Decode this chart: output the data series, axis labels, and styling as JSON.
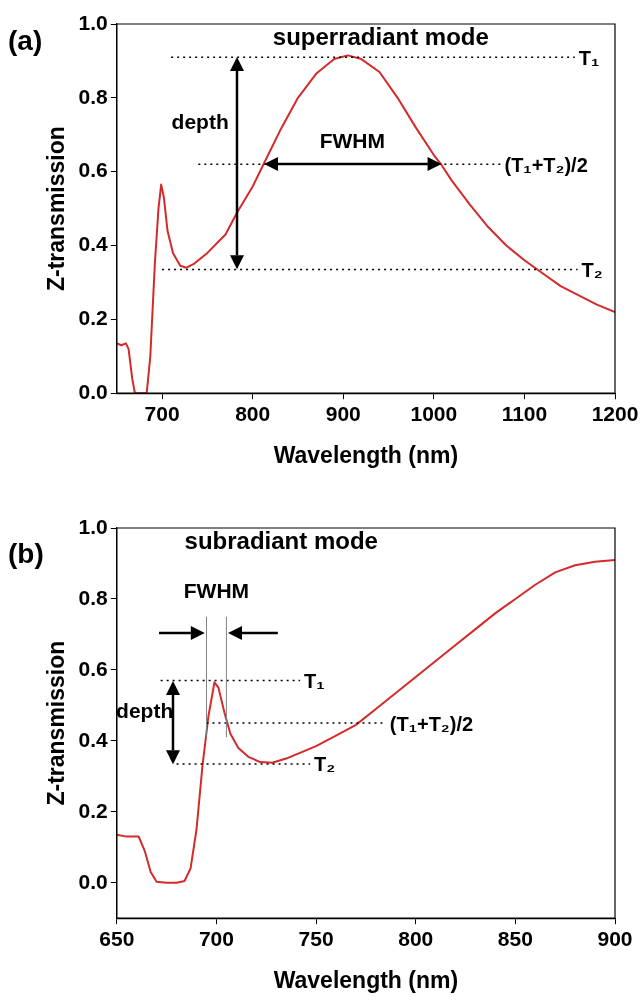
{
  "chart_data": [
    {
      "type": "line",
      "title": "superradiant mode",
      "xlabel": "Wavelength (nm)",
      "ylabel": "Z-transmission",
      "xlim": [
        650,
        1200
      ],
      "xticks": [
        700,
        800,
        900,
        1000,
        1100,
        1200
      ],
      "ylim": [
        0,
        1
      ],
      "yticks": [
        {
          "value": 0,
          "label": "0.0"
        },
        {
          "value": 0.2,
          "label": "0.2"
        },
        {
          "value": 0.4,
          "label": "0.4"
        },
        {
          "value": 0.6,
          "label": "0.6"
        },
        {
          "value": 0.8,
          "label": "0.8"
        },
        {
          "value": 1,
          "label": "1.0"
        }
      ],
      "grid": false,
      "legend": false,
      "marker": "none",
      "line_style": "solid",
      "ref_lines": [
        {
          "axis": "y",
          "value": 0.91,
          "label": "T₁",
          "color": "#000000",
          "line_style": "dotted"
        },
        {
          "axis": "y",
          "value": 0.62,
          "label": "(T₁+T₂)/2",
          "color": "#000000",
          "line_style": "dotted"
        },
        {
          "axis": "y",
          "value": 0.335,
          "label": "T₂",
          "color": "#000000",
          "line_style": "dotted"
        }
      ],
      "annotations": [
        "(a)",
        "depth",
        "FWHM"
      ],
      "series": [
        {
          "color": "#d42a2a",
          "x": [
            650,
            655,
            660,
            663,
            667,
            670,
            683,
            687,
            692,
            696,
            699,
            702,
            706,
            712,
            720,
            727,
            735,
            750,
            770,
            783,
            800,
            812,
            830,
            850,
            870,
            890,
            905,
            920,
            940,
            960,
            980,
            1000,
            1008,
            1020,
            1040,
            1060,
            1080,
            1100,
            1120,
            1140,
            1160,
            1180,
            1200
          ],
          "values": [
            0.135,
            0.13,
            0.135,
            0.12,
            0.04,
            0.0,
            0.0,
            0.1,
            0.35,
            0.5,
            0.565,
            0.53,
            0.44,
            0.38,
            0.345,
            0.34,
            0.35,
            0.38,
            0.43,
            0.49,
            0.56,
            0.62,
            0.71,
            0.8,
            0.865,
            0.905,
            0.915,
            0.905,
            0.87,
            0.8,
            0.72,
            0.645,
            0.62,
            0.575,
            0.51,
            0.45,
            0.4,
            0.36,
            0.325,
            0.29,
            0.265,
            0.24,
            0.22
          ]
        }
      ]
    },
    {
      "type": "line",
      "title": "subradiant mode",
      "xlabel": "Wavelength (nm)",
      "ylabel": "Z-transmission",
      "xlim": [
        650,
        900
      ],
      "xticks": [
        650,
        700,
        750,
        800,
        850,
        900
      ],
      "ylim": [
        -0.1,
        1
      ],
      "yticks": [
        {
          "value": 0,
          "label": "0.0"
        },
        {
          "value": 0.2,
          "label": "0.2"
        },
        {
          "value": 0.4,
          "label": "0.4"
        },
        {
          "value": 0.6,
          "label": "0.6"
        },
        {
          "value": 0.8,
          "label": "0.8"
        },
        {
          "value": 1,
          "label": "1.0"
        }
      ],
      "grid": false,
      "legend": false,
      "marker": "none",
      "line_style": "solid",
      "ref_lines": [
        {
          "axis": "y",
          "value": 0.57,
          "label": "T₁",
          "color": "#000000",
          "line_style": "dotted"
        },
        {
          "axis": "y",
          "value": 0.45,
          "label": "(T₁+T₂)/2",
          "color": "#000000",
          "line_style": "dotted"
        },
        {
          "axis": "y",
          "value": 0.335,
          "label": "T₂",
          "color": "#000000",
          "line_style": "dotted"
        },
        {
          "axis": "x",
          "value": 695,
          "color": "#808080",
          "line_style": "solid"
        },
        {
          "axis": "x",
          "value": 705,
          "color": "#808080",
          "line_style": "solid"
        }
      ],
      "annotations": [
        "(b)",
        "depth",
        "FWHM"
      ],
      "series": [
        {
          "color": "#d42a2a",
          "x": [
            650,
            655,
            658,
            661,
            664,
            667,
            670,
            675,
            680,
            684,
            687,
            690,
            693,
            696,
            699,
            701,
            704,
            707,
            711,
            716,
            722,
            728,
            735,
            750,
            760,
            770,
            780,
            790,
            800,
            810,
            820,
            830,
            840,
            850,
            860,
            870,
            880,
            890,
            900
          ],
          "values": [
            0.135,
            0.13,
            0.13,
            0.13,
            0.09,
            0.03,
            0.003,
            0.0,
            0.0,
            0.005,
            0.04,
            0.15,
            0.33,
            0.47,
            0.565,
            0.55,
            0.48,
            0.42,
            0.38,
            0.355,
            0.34,
            0.338,
            0.35,
            0.385,
            0.415,
            0.445,
            0.49,
            0.535,
            0.58,
            0.625,
            0.67,
            0.715,
            0.76,
            0.8,
            0.84,
            0.875,
            0.895,
            0.905,
            0.91
          ]
        }
      ]
    }
  ]
}
